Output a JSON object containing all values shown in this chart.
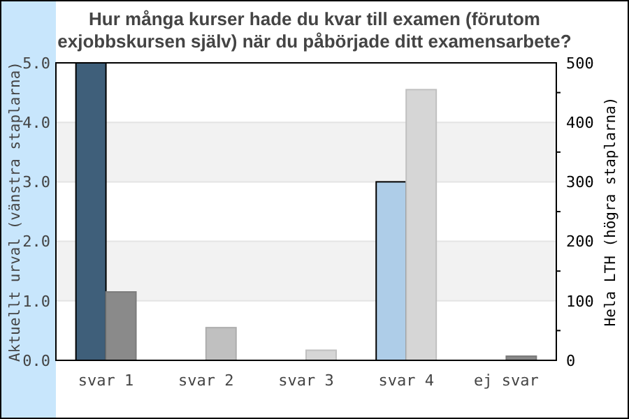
{
  "chart_data": {
    "type": "bar",
    "title": "Hur många kurser hade du kvar till examen (förutom exjobbskursen själv) när du påbörjade ditt examensarbete?",
    "categories": [
      "svar 1",
      "svar 2",
      "svar 3",
      "svar 4",
      "ej svar"
    ],
    "ylabel": "Aktuellt urval (vänstra staplarna)",
    "y2label": "Hela LTH (högra staplarna)",
    "ylim": [
      0,
      5
    ],
    "yticks": [
      {
        "value": 0,
        "label": "0.0"
      },
      {
        "value": 1,
        "label": "1.0"
      },
      {
        "value": 2,
        "label": "2.0"
      },
      {
        "value": 3,
        "label": "3.0"
      },
      {
        "value": 4,
        "label": "4.0"
      },
      {
        "value": 5,
        "label": "5.0"
      }
    ],
    "y2lim": [
      0,
      500
    ],
    "y2ticks": [
      0,
      {
        "value": 50,
        "label": null
      },
      100,
      {
        "value": 150,
        "label": null
      },
      200,
      {
        "value": 250,
        "label": null
      },
      300,
      {
        "value": 350,
        "label": null
      },
      400,
      {
        "value": 450,
        "label": null
      },
      500
    ],
    "grid": "y",
    "bands": [
      {
        "axis": "y",
        "from": 1,
        "to": 2,
        "color": "#f2f2f2"
      },
      {
        "axis": "y",
        "from": 3,
        "to": 4,
        "color": "#f2f2f2"
      }
    ],
    "series": [
      {
        "values": [
          5,
          0,
          0,
          3,
          0
        ],
        "colors": [
          "#3f5f7a",
          "#3f5f7a",
          "#3f5f7a",
          "#aecde8",
          "#aecde8"
        ]
      },
      {
        "axis": "y2",
        "values": [
          115,
          55,
          17,
          455,
          7
        ],
        "colors": [
          "#8a8a8a",
          "#c0c0c0",
          "#d6d6d6",
          "#d6d6d6",
          "#888888"
        ]
      }
    ]
  }
}
